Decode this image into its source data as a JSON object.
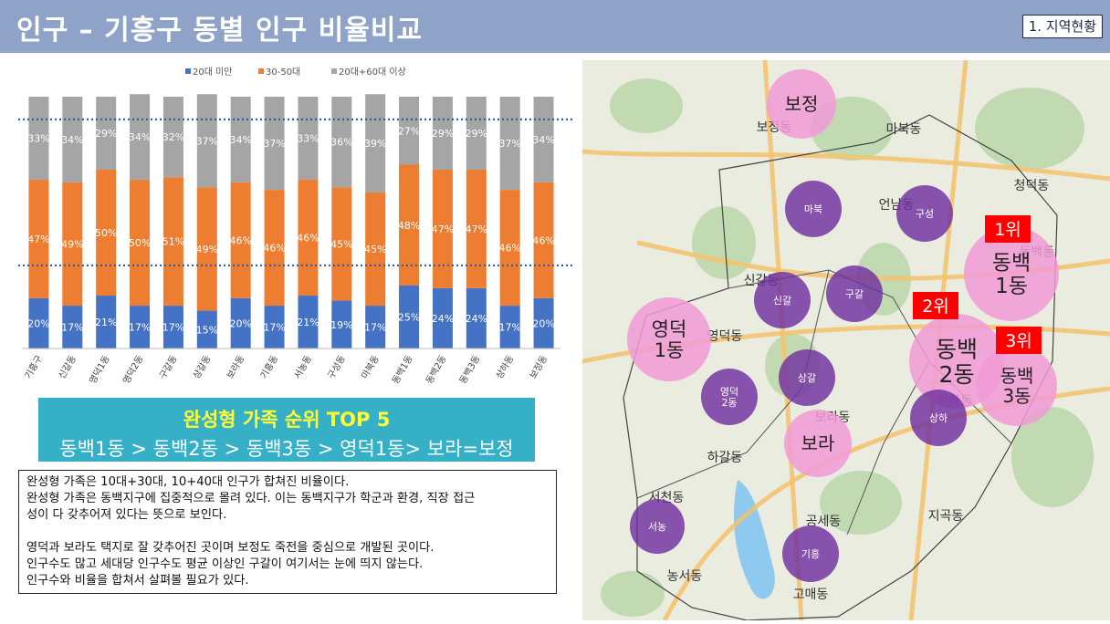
{
  "header": {
    "title": "인구 – 기흥구 동별 인구 비율비교",
    "section": "1. 지역현황"
  },
  "chart_data": {
    "type": "bar",
    "stacked": true,
    "percent": true,
    "categories": [
      "기흥구",
      "신갈동",
      "영덕1동",
      "영덕2동",
      "구갈동",
      "상갈동",
      "보라동",
      "기흥동",
      "서농동",
      "구성동",
      "마북동",
      "동백1동",
      "동백2동",
      "동백3동",
      "상하동",
      "보정동"
    ],
    "series": [
      {
        "name": "20대 미만",
        "color": "#4472c4",
        "values": [
          20,
          17,
          21,
          17,
          17,
          15,
          20,
          17,
          21,
          19,
          17,
          25,
          24,
          24,
          17,
          20
        ]
      },
      {
        "name": "30-50대",
        "color": "#ed7d31",
        "values": [
          47,
          49,
          50,
          50,
          51,
          49,
          46,
          46,
          46,
          45,
          45,
          48,
          47,
          47,
          46,
          46
        ]
      },
      {
        "name": "20대+60대 이상",
        "color": "#a5a5a5",
        "values": [
          33,
          34,
          29,
          34,
          32,
          37,
          34,
          37,
          33,
          36,
          39,
          27,
          29,
          29,
          37,
          34
        ]
      }
    ],
    "value_suffix": "%",
    "ylim": [
      0,
      100
    ],
    "legend_position": "top",
    "reference_lines": "dotted"
  },
  "top5": {
    "title": "완성형 가족 순위 TOP 5",
    "ranking": "동백1동 > 동백2동 > 동백3동 > 영덕1동> 보라=보정"
  },
  "note": {
    "lines": [
      "완성형 가족은 10대+30대, 10+40대 인구가 합쳐진 비율이다.",
      "완성형 가족은 동백지구에 집중적으로 몰려 있다. 이는 동백지구가 학군과 환경, 직장 접근",
      "성이 다 갖추어져 있다는 뜻으로 보인다.",
      "영덕과 보라도 택지로 잘 갖추어진 곳이며 보정도 죽전을 중심으로 개발된 곳이다.",
      "인구수도 많고 세대당 인구수도 평균 이상인 구갈이 여기서는 눈에 띄지 않는다.",
      "인구수와 비율을 합쳐서 살펴볼 필요가 있다."
    ]
  },
  "map": {
    "background_labels": [
      "보정동",
      "마북동",
      "언남동",
      "청덕동",
      "동백동",
      "신갈동",
      "영덕동",
      "보라동",
      "하갈동",
      "상하동",
      "서천동",
      "공세동",
      "지곡동",
      "농서동",
      "고매동"
    ],
    "pink_circles": [
      {
        "label": "보정"
      },
      {
        "label": "영덕\n1동"
      },
      {
        "label": "보라"
      },
      {
        "label": "동백\n1동"
      },
      {
        "label": "동백\n2동"
      },
      {
        "label": "동백\n3동"
      }
    ],
    "purple_circles": [
      {
        "label": "마북"
      },
      {
        "label": "구성"
      },
      {
        "label": "신갈"
      },
      {
        "label": "구갈"
      },
      {
        "label": "상갈"
      },
      {
        "label": "영덕\n2동"
      },
      {
        "label": "상하"
      },
      {
        "label": "서농"
      },
      {
        "label": "기흥"
      }
    ],
    "rank_badges": [
      "1위",
      "2위",
      "3위"
    ]
  },
  "colors": {
    "header_bg": "#8fa3c9",
    "pink_circle": "#f19ad6",
    "purple_circle": "#7030a0",
    "rank_badge": "#ff0000",
    "top5_bg": "#36b0c6",
    "top5_title": "#ffff33"
  }
}
